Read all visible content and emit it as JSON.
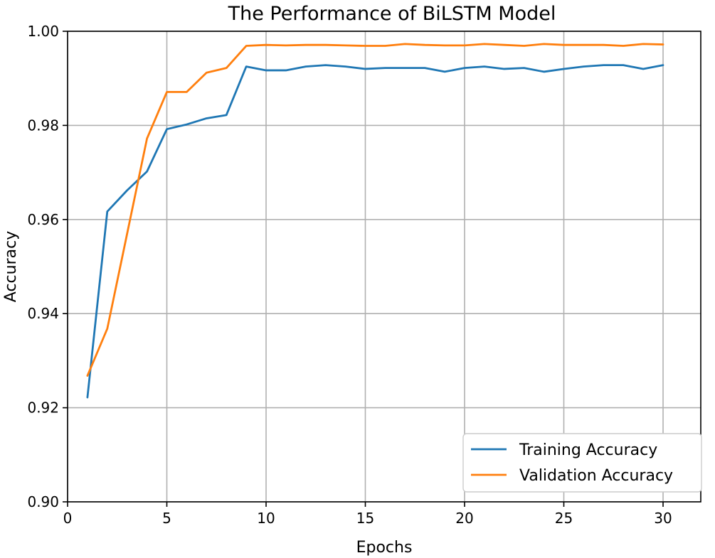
{
  "chart_data": {
    "type": "line",
    "title": "The Performance of BiLSTM Model",
    "xlabel": "Epochs",
    "ylabel": "Accuracy",
    "xlim": [
      0,
      30.5
    ],
    "ylim": [
      0.9,
      1.0
    ],
    "xticks": [
      0,
      5,
      10,
      15,
      20,
      25,
      30
    ],
    "xtick_labels": [
      "0",
      "5",
      "10",
      "15",
      "20",
      "25",
      "30"
    ],
    "yticks": [
      0.9,
      0.92,
      0.94,
      0.96,
      0.98,
      1.0
    ],
    "ytick_labels": [
      "0.90",
      "0.92",
      "0.94",
      "0.96",
      "0.98",
      "1.00"
    ],
    "grid": true,
    "legend_position": "bottom-right",
    "x": [
      1,
      2,
      3,
      4,
      5,
      6,
      7,
      8,
      9,
      10,
      11,
      12,
      13,
      14,
      15,
      16,
      17,
      18,
      19,
      20,
      21,
      22,
      23,
      24,
      25,
      26,
      27,
      28,
      29,
      30
    ],
    "series": [
      {
        "name": "Training Accuracy",
        "color": "#1f77b4",
        "values": [
          0.9222,
          0.9617,
          0.9662,
          0.9702,
          0.9792,
          0.9802,
          0.9815,
          0.9822,
          0.9925,
          0.9917,
          0.9917,
          0.9925,
          0.9928,
          0.9925,
          0.992,
          0.9922,
          0.9922,
          0.9922,
          0.9914,
          0.9922,
          0.9925,
          0.992,
          0.9922,
          0.9914,
          0.992,
          0.9925,
          0.9928,
          0.9928,
          0.992,
          0.9928
        ]
      },
      {
        "name": "Validation Accuracy",
        "color": "#ff7f0e",
        "values": [
          0.9268,
          0.9368,
          0.957,
          0.9772,
          0.9871,
          0.9871,
          0.9912,
          0.9922,
          0.9969,
          0.9971,
          0.997,
          0.9971,
          0.9971,
          0.997,
          0.9969,
          0.9969,
          0.9973,
          0.9971,
          0.997,
          0.997,
          0.9973,
          0.9971,
          0.9969,
          0.9973,
          0.9971,
          0.9971,
          0.9971,
          0.9969,
          0.9973,
          0.9972
        ]
      }
    ]
  }
}
